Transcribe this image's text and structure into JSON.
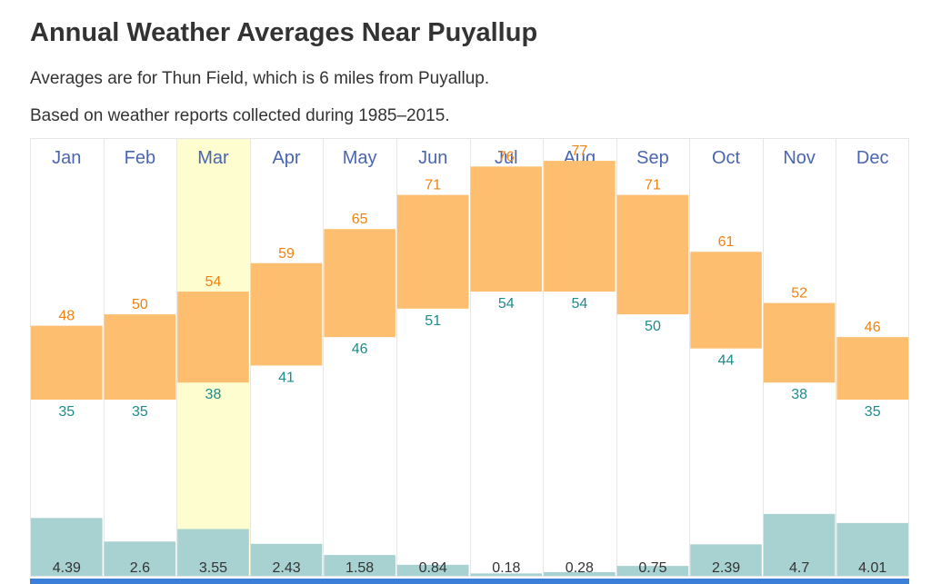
{
  "title": "Annual Weather Averages Near Puyallup",
  "subtitle_location": "Averages are for Thun Field, which is 6 miles from Puyallup.",
  "subtitle_period": "Based on weather reports collected during 1985–2015.",
  "colors": {
    "high_temp": "#fdbf6f",
    "high_temp_label": "#f0820f",
    "low_temp_label": "#1e8c8c",
    "precip": "#a8d1d1",
    "month_label": "#4a66b0",
    "highlight": "#fdfdcf",
    "grid": "#e6e6e6",
    "bottom_bar": "#3b7fd9"
  },
  "chart_data": {
    "type": "bar",
    "categories": [
      "Jan",
      "Feb",
      "Mar",
      "Apr",
      "May",
      "Jun",
      "Jul",
      "Aug",
      "Sep",
      "Oct",
      "Nov",
      "Dec"
    ],
    "highlighted_category": "Mar",
    "series": [
      {
        "values": [
          48,
          50,
          54,
          59,
          65,
          71,
          76,
          77,
          71,
          61,
          52,
          46
        ]
      },
      {
        "values": [
          35,
          35,
          38,
          41,
          46,
          51,
          54,
          54,
          50,
          44,
          38,
          35
        ]
      },
      {
        "values": [
          4.39,
          2.6,
          3.55,
          2.43,
          1.58,
          0.84,
          0.18,
          0.28,
          0.75,
          2.39,
          4.7,
          4.01
        ]
      }
    ]
  }
}
